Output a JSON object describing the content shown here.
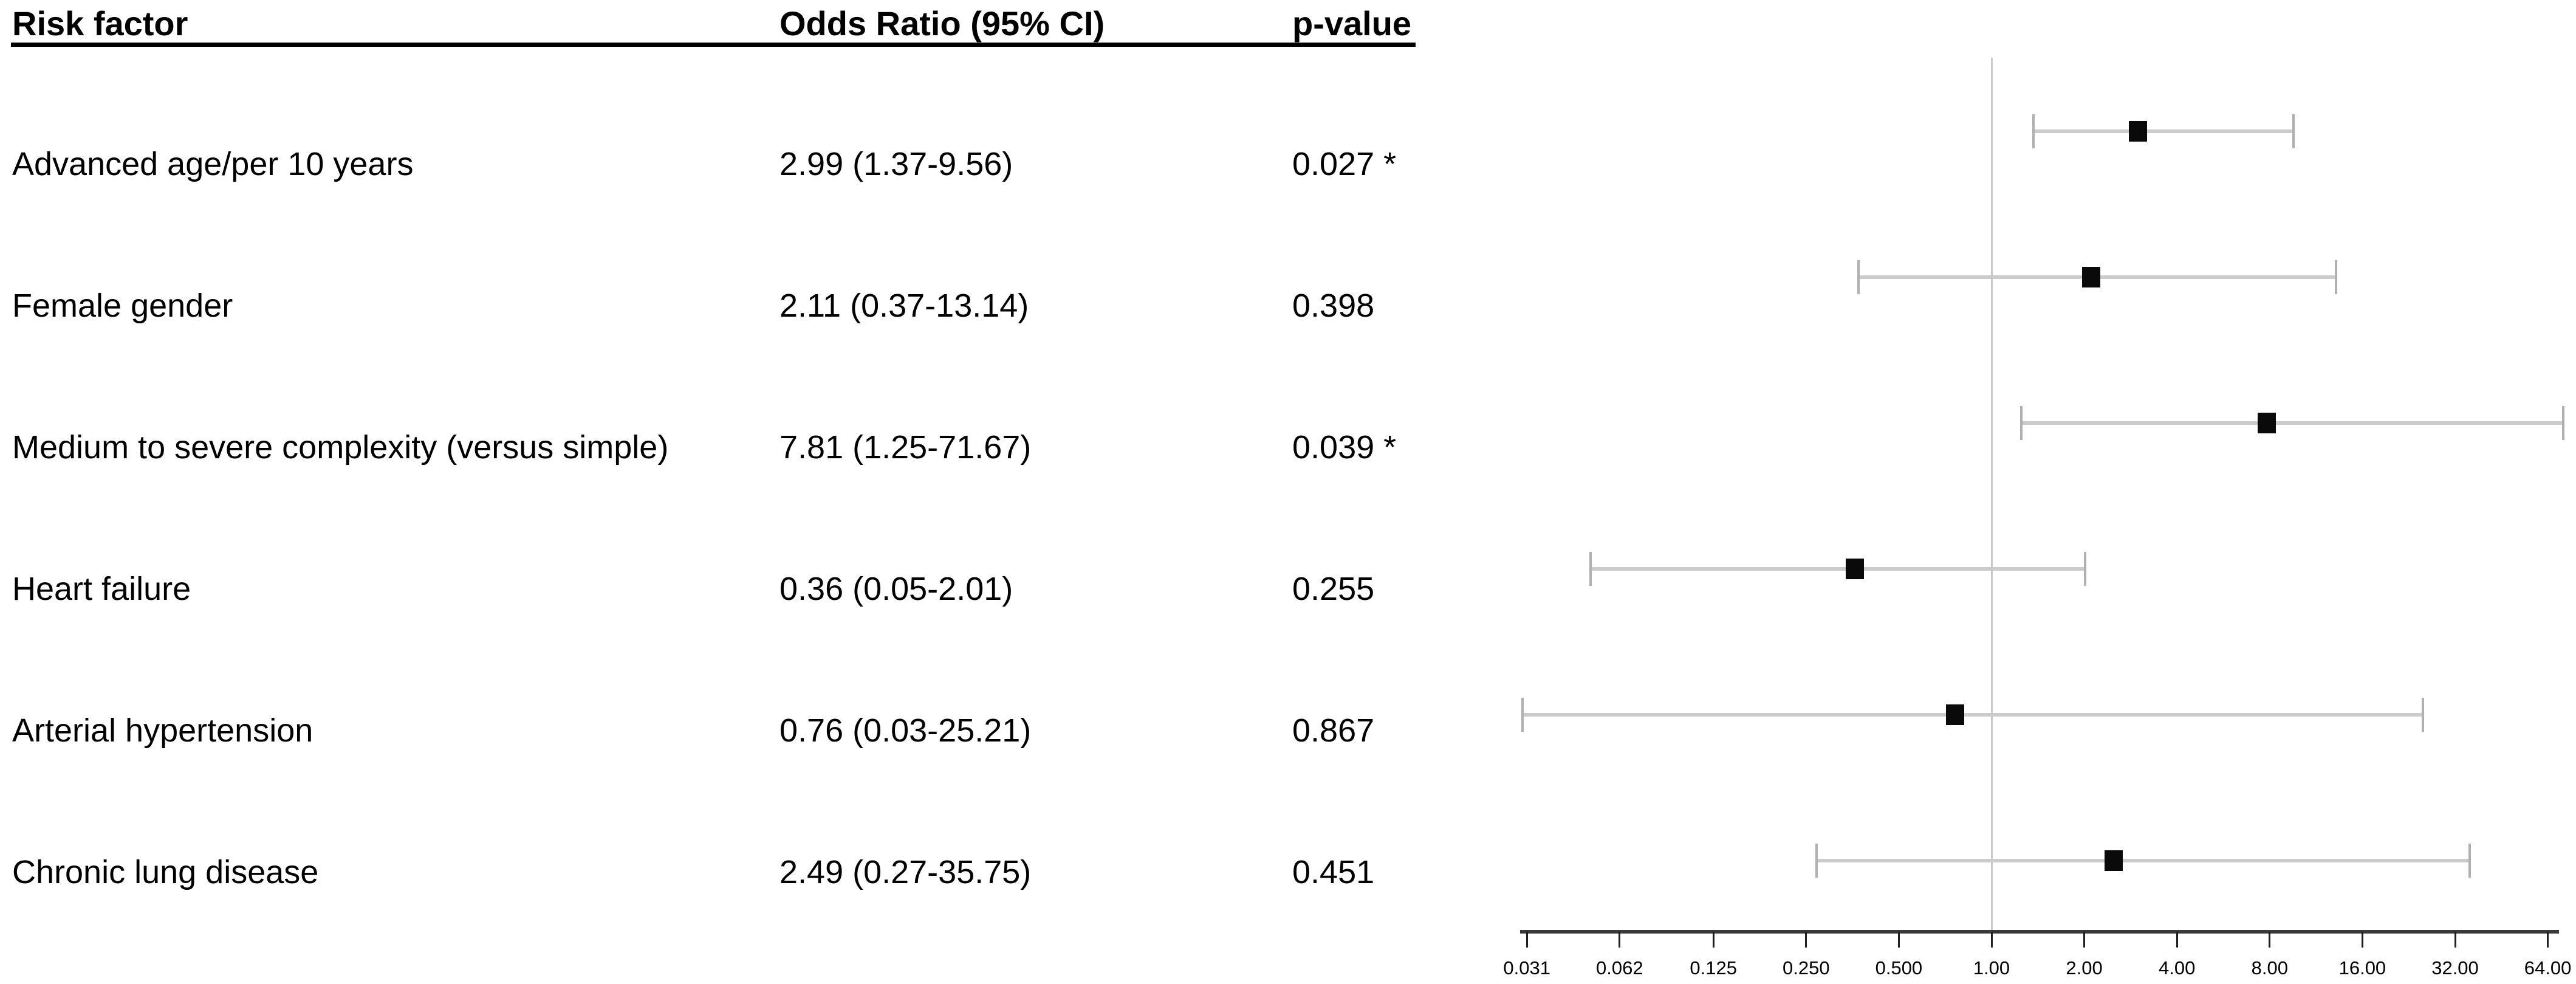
{
  "table": {
    "headers": {
      "risk_factor": "Risk factor",
      "odds_ratio": "Odds Ratio (95% CI)",
      "p_value": "p-value"
    },
    "rows": [
      {
        "risk_factor": "Advanced age/per 10 years",
        "odds_ratio": "2.99 (1.37-9.56)",
        "p_value": "0.027 *"
      },
      {
        "risk_factor": "Female gender",
        "odds_ratio": "2.11 (0.37-13.14)",
        "p_value": "0.398"
      },
      {
        "risk_factor": "Medium to severe complexity (versus simple)",
        "odds_ratio": "7.81 (1.25-71.67)",
        "p_value": "0.039 *"
      },
      {
        "risk_factor": "Heart failure",
        "odds_ratio": "0.36 (0.05-2.01)",
        "p_value": "0.255"
      },
      {
        "risk_factor": "Arterial hypertension",
        "odds_ratio": "0.76 (0.03-25.21)",
        "p_value": "0.867"
      },
      {
        "risk_factor": "Chronic lung disease",
        "odds_ratio": "2.49 (0.27-35.75)",
        "p_value": "0.451"
      }
    ]
  },
  "chart_data": {
    "type": "scatter",
    "subtype": "forest-plot",
    "title": "",
    "xlabel": "",
    "ylabel": "",
    "x_scale": "log2",
    "x_range": [
      0.031,
      64
    ],
    "reference_line": 1.0,
    "grid": false,
    "legend": "none",
    "x_ticks": [
      {
        "value": 0.031,
        "label": "0.031"
      },
      {
        "value": 0.062,
        "label": "0.062"
      },
      {
        "value": 0.125,
        "label": "0.125"
      },
      {
        "value": 0.25,
        "label": "0.250"
      },
      {
        "value": 0.5,
        "label": "0.500"
      },
      {
        "value": 1.0,
        "label": "1.00"
      },
      {
        "value": 2.0,
        "label": "2.00"
      },
      {
        "value": 4.0,
        "label": "4.00"
      },
      {
        "value": 8.0,
        "label": "8.00"
      },
      {
        "value": 16.0,
        "label": "16.00"
      },
      {
        "value": 32.0,
        "label": "32.00"
      },
      {
        "value": 64.0,
        "label": "64.00"
      }
    ],
    "series": [
      {
        "name": "Advanced age/per 10 years",
        "or": 2.99,
        "ci_low": 1.37,
        "ci_high": 9.56,
        "p": 0.027,
        "significant": true
      },
      {
        "name": "Female gender",
        "or": 2.11,
        "ci_low": 0.37,
        "ci_high": 13.14,
        "p": 0.398,
        "significant": false
      },
      {
        "name": "Medium to severe complexity (versus simple)",
        "or": 7.81,
        "ci_low": 1.25,
        "ci_high": 71.67,
        "p": 0.039,
        "significant": true
      },
      {
        "name": "Heart failure",
        "or": 0.36,
        "ci_low": 0.05,
        "ci_high": 2.01,
        "p": 0.255,
        "significant": false
      },
      {
        "name": "Arterial hypertension",
        "or": 0.76,
        "ci_low": 0.03,
        "ci_high": 25.21,
        "p": 0.867,
        "significant": false
      },
      {
        "name": "Chronic lung disease",
        "or": 2.49,
        "ci_low": 0.27,
        "ci_high": 35.75,
        "p": 0.451,
        "significant": false
      }
    ]
  },
  "colors": {
    "text": "#000000",
    "header_rule": "#000000",
    "axis_line": "#3a3a3a",
    "tick_mark": "#1f1f1f",
    "tick_label": "#000000",
    "reference_line": "#c9c9c9",
    "ci_line": "#cbcbcb",
    "ci_cap": "#b0b0b0",
    "marker": "#0a0a0a",
    "background": "#ffffff"
  }
}
